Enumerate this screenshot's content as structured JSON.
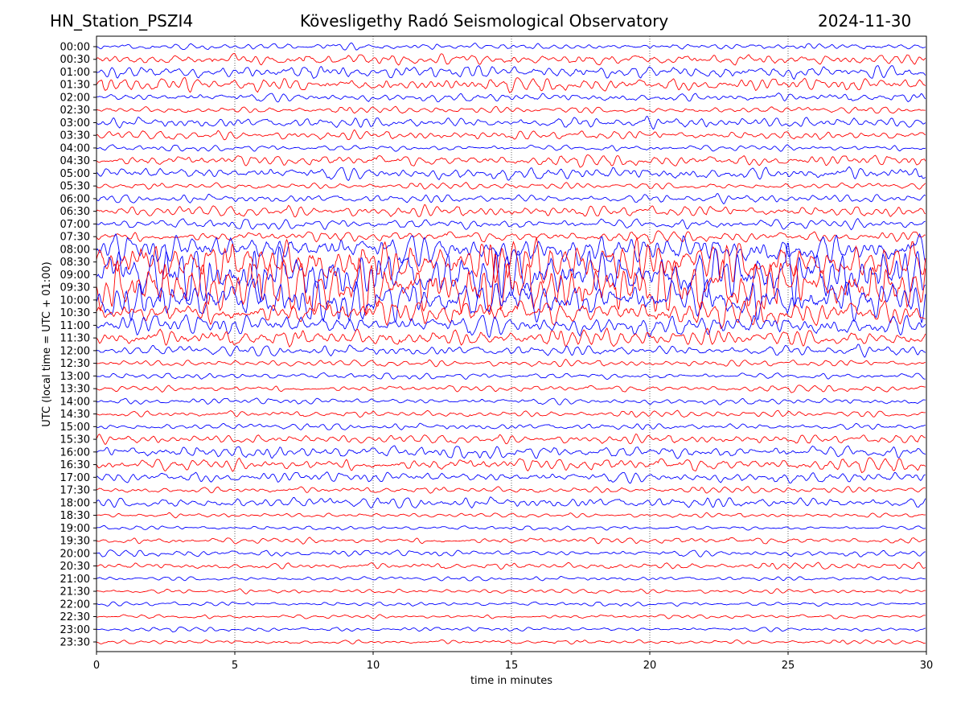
{
  "header": {
    "station": "HN_Station_PSZI4",
    "observatory": "Kövesligethy Radó Seismological Observatory",
    "date": "2024-11-30"
  },
  "chart_data": {
    "type": "line",
    "title": "Kövesligethy Radó Seismological Observatory",
    "xlabel": "time in minutes",
    "ylabel": "UTC (local time = UTC + 01:00)",
    "xlim": [
      0,
      30
    ],
    "xticks": [
      "0",
      "5",
      "10",
      "15",
      "20",
      "25",
      "30"
    ],
    "xtick_values": [
      0,
      5,
      10,
      15,
      20,
      25,
      30
    ],
    "grid": "vertical dotted at x ticks",
    "colors": {
      "even_rows": "#0000ff",
      "odd_rows": "#ff0000"
    },
    "rows": [
      "00:00",
      "00:30",
      "01:00",
      "01:30",
      "02:00",
      "02:30",
      "03:00",
      "03:30",
      "04:00",
      "04:30",
      "05:00",
      "05:30",
      "06:00",
      "06:30",
      "07:00",
      "07:30",
      "08:00",
      "08:30",
      "09:00",
      "09:30",
      "10:00",
      "10:30",
      "11:00",
      "11:30",
      "12:00",
      "12:30",
      "13:00",
      "13:30",
      "14:00",
      "14:30",
      "15:00",
      "15:30",
      "16:00",
      "16:30",
      "17:00",
      "17:30",
      "18:00",
      "18:30",
      "19:00",
      "19:30",
      "20:00",
      "20:30",
      "21:00",
      "21:30",
      "22:00",
      "22:30",
      "23:00",
      "23:30"
    ],
    "relative_amplitude": [
      3,
      5,
      6,
      6,
      4,
      3,
      5,
      4,
      3,
      5,
      6,
      3,
      4,
      5,
      5,
      5,
      14,
      20,
      25,
      25,
      20,
      12,
      10,
      8,
      5,
      3,
      3,
      3,
      3,
      3,
      3,
      4,
      6,
      6,
      5,
      3,
      5,
      2,
      2,
      3,
      3,
      3,
      2,
      2,
      2,
      2,
      2,
      2
    ]
  }
}
